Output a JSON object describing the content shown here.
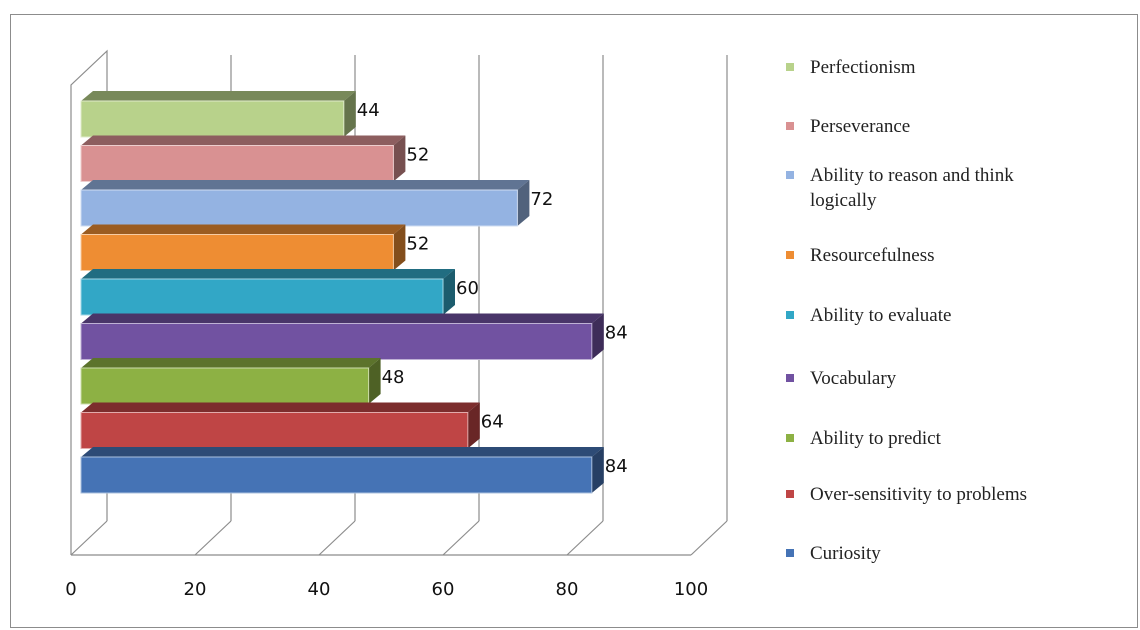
{
  "chart_data": {
    "type": "bar",
    "orientation": "horizontal",
    "style": "3d",
    "xlim": [
      0,
      100
    ],
    "ticks": [
      0,
      20,
      40,
      60,
      80,
      100
    ],
    "grid": true,
    "legend_position": "right",
    "series": [
      {
        "name": "Curiosity",
        "value": 84,
        "color": "#4573b5"
      },
      {
        "name": "Over-sensitivity to problems",
        "value": 64,
        "color": "#bf4545"
      },
      {
        "name": "Ability to predict",
        "value": 48,
        "color": "#8db144"
      },
      {
        "name": "Vocabulary",
        "value": 84,
        "color": "#7152a1"
      },
      {
        "name": "Ability to evaluate",
        "value": 60,
        "color": "#32a7c6"
      },
      {
        "name": "Resourcefulness",
        "value": 52,
        "color": "#ee8d33"
      },
      {
        "name": "Ability to reason and think logically",
        "value": 72,
        "color": "#94b3e2"
      },
      {
        "name": "Perseverance",
        "value": 52,
        "color": "#d99192"
      },
      {
        "name": "Perfectionism",
        "value": 44,
        "color": "#b8d28b"
      }
    ]
  }
}
